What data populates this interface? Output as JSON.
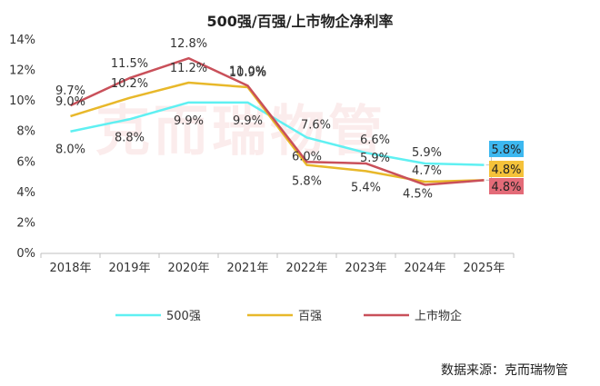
{
  "watermark": "克而瑞物管",
  "source": "数据来源：克而瑞物管",
  "chart_data": {
    "type": "line",
    "title": "500强/百强/上市物企净利率",
    "categories": [
      "2018年",
      "2019年",
      "2020年",
      "2021年",
      "2022年",
      "2023年",
      "2024年",
      "2025年"
    ],
    "ylim": [
      0,
      14
    ],
    "yticks": [
      "0%",
      "2%",
      "4%",
      "6%",
      "8%",
      "10%",
      "12%",
      "14%"
    ],
    "grid": false,
    "legend_position": "bottom",
    "series": [
      {
        "name": "500强",
        "color": "#5ff0f2",
        "values": [
          8.0,
          8.8,
          9.9,
          9.9,
          7.6,
          6.6,
          5.9,
          5.8
        ],
        "labels": [
          "8.0%",
          "8.8%",
          "9.9%",
          "9.9%",
          "7.6%",
          "6.6%",
          "5.9%",
          "5.8%"
        ]
      },
      {
        "name": "百强",
        "color": "#e8b82a",
        "values": [
          9.0,
          10.2,
          11.2,
          10.9,
          5.8,
          5.4,
          4.7,
          4.8
        ],
        "labels": [
          "9.0%",
          "10.2%",
          "11.2%",
          "10.9%",
          "5.8%",
          "5.4%",
          "4.7%",
          "4.8%"
        ]
      },
      {
        "name": "上市物企",
        "color": "#c9505a",
        "values": [
          9.7,
          11.5,
          12.8,
          11.0,
          6.0,
          5.9,
          4.5,
          4.8
        ],
        "labels": [
          "9.7%",
          "11.5%",
          "12.8%",
          "11.0%",
          "6.0%",
          "5.9%",
          "4.5%",
          "4.8%"
        ]
      }
    ],
    "end_label_colors": [
      "#3db8f0",
      "#f5c23a",
      "#e36b78"
    ]
  }
}
